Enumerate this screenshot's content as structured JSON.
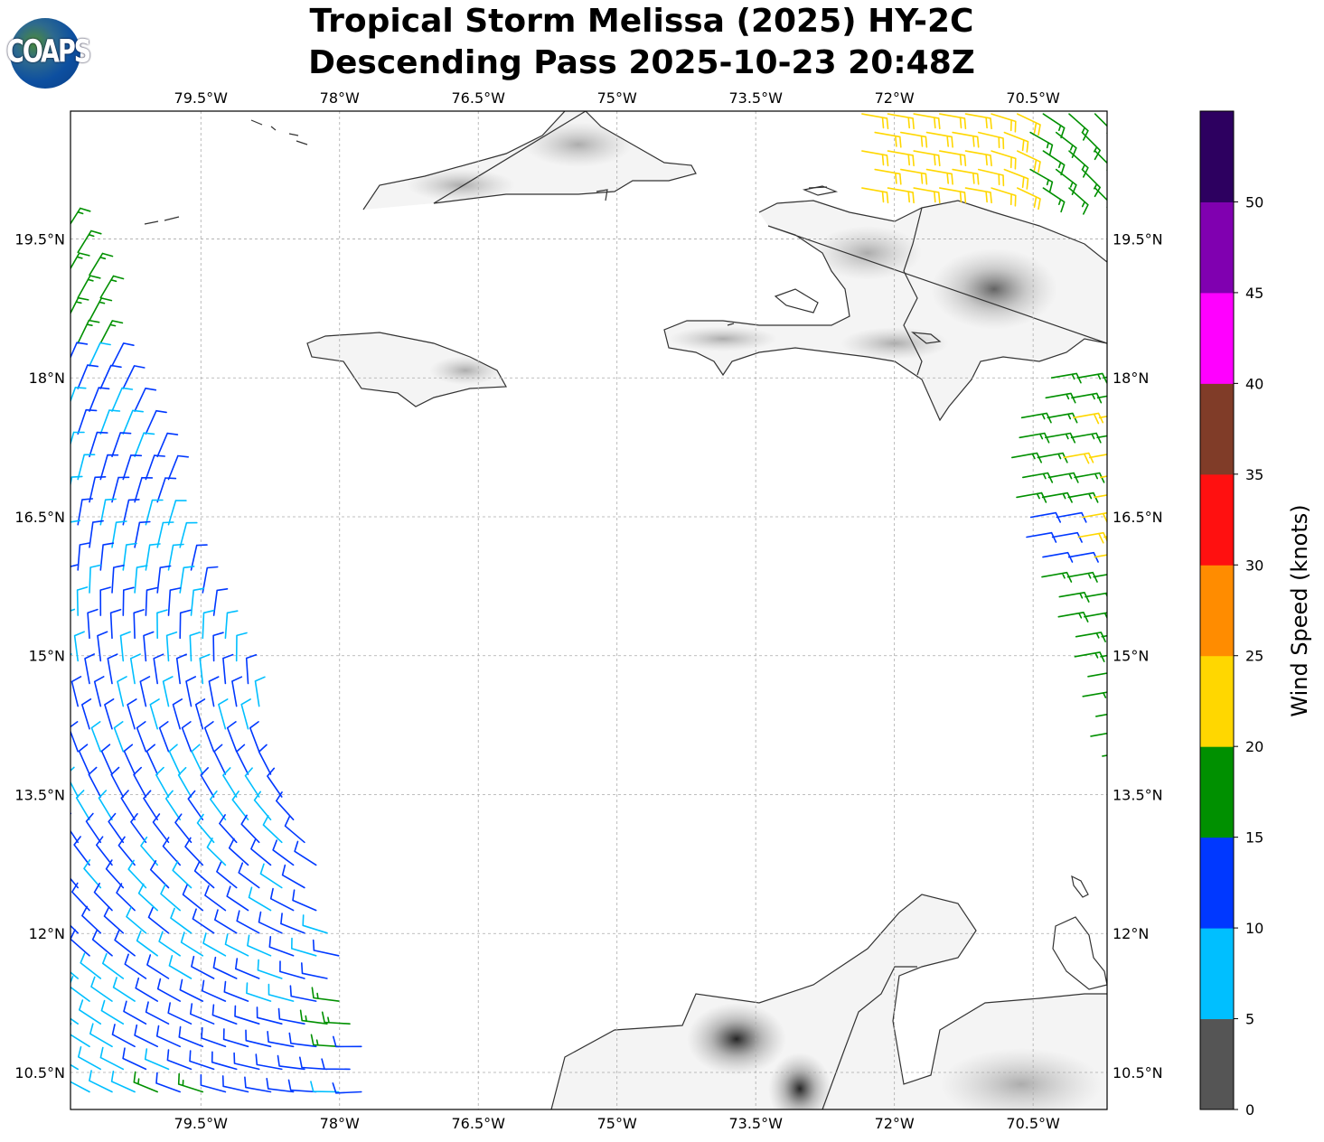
{
  "title": {
    "line1": "Tropical Storm Melissa (2025) HY-2C",
    "line2": "Descending Pass 2025-10-23 20:48Z"
  },
  "logo": {
    "text": "COAPS"
  },
  "map": {
    "extent": {
      "lon_min": -80.91,
      "lon_max": -69.7,
      "lat_min": 10.1,
      "lat_max": 20.88
    },
    "lon_ticks": [
      {
        "value": -79.5,
        "label": "79.5°W"
      },
      {
        "value": -78,
        "label": "78°W"
      },
      {
        "value": -76.5,
        "label": "76.5°W"
      },
      {
        "value": -75,
        "label": "75°W"
      },
      {
        "value": -73.5,
        "label": "73.5°W"
      },
      {
        "value": -72,
        "label": "72°W"
      },
      {
        "value": -70.5,
        "label": "70.5°W"
      }
    ],
    "lat_ticks": [
      {
        "value": 19.5,
        "label": "19.5°N"
      },
      {
        "value": 18,
        "label": "18°N"
      },
      {
        "value": 16.5,
        "label": "16.5°N"
      },
      {
        "value": 15,
        "label": "15°N"
      },
      {
        "value": 13.5,
        "label": "13.5°N"
      },
      {
        "value": 12,
        "label": "12°N"
      },
      {
        "value": 10.5,
        "label": "10.5°N"
      }
    ]
  },
  "colorbar": {
    "label": "Wind Speed (knots)",
    "min": 0,
    "max": 55,
    "ticks": [
      "0",
      "5",
      "10",
      "15",
      "20",
      "25",
      "30",
      "35",
      "40",
      "45",
      "50"
    ],
    "colors": [
      "#555555",
      "#00bfff",
      "#0038ff",
      "#009000",
      "#ffd700",
      "#ff8c00",
      "#ff1010",
      "#803c28",
      "#ff00ff",
      "#8000b0",
      "#2d0060"
    ]
  },
  "wind_barbs": {
    "cyclone_center": {
      "lon": -76.6,
      "lat": 14.0
    },
    "inflow_deg": 20,
    "swaths": [
      {
        "name": "west-swath",
        "lat_start": 19.6,
        "lat_end": 10.15,
        "lat_step": 0.245,
        "lon_step": 0.245,
        "lon_left": -80.95,
        "right_edge": [
          [
            19.6,
            -80.75
          ],
          [
            18.0,
            -80.3
          ],
          [
            15.0,
            -79.05
          ],
          [
            13.0,
            -78.3
          ],
          [
            10.3,
            -77.6
          ]
        ],
        "mode": "cyclone"
      },
      {
        "name": "east-swath",
        "lat_start": 18.0,
        "lat_end": 13.9,
        "lat_step": 0.215,
        "lon_step": 0.28,
        "left_edge": [
          [
            18.0,
            -70.3
          ],
          [
            17.4,
            -70.75
          ],
          [
            16.8,
            -70.7
          ],
          [
            16.2,
            -70.55
          ],
          [
            15.6,
            -70.3
          ],
          [
            15.0,
            -70.05
          ],
          [
            14.0,
            -69.85
          ]
        ],
        "lon_right": -69.7,
        "dir_from": 80,
        "mode": "trade"
      },
      {
        "name": "north-swath",
        "lat_start": 20.85,
        "lat_end": 19.95,
        "lat_step": 0.2,
        "lon_step": 0.28,
        "lon_left": -72.35,
        "lon_right": -69.7,
        "dir_from_west": 100,
        "dir_from_east": 135,
        "mode": "north"
      }
    ],
    "speed_classes_kt": {
      "cyan": 8,
      "blue": 12,
      "green": 17,
      "yellow": 22
    }
  }
}
